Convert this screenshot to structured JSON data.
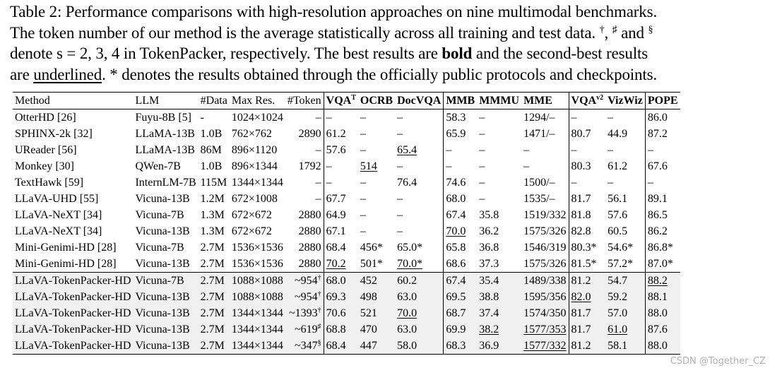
{
  "caption": {
    "line1": "Table 2: Performance comparisons with high-resolution approaches on nine multimodal benchmarks.",
    "line2a": "The token number of our method is the average statistically across all training and test data. ",
    "sym1": "†",
    "line2b": ", ",
    "sym2": "♯",
    "line2c": " and ",
    "sym3": "§",
    "line3": "denote s = 2, 3, 4 in TokenPacker, respectively. The best results are ",
    "bold_word": "bold",
    "line3b": " and the second-best results",
    "line4a": "are ",
    "underlined_word": "underlined",
    "line4b": ". * denotes the results obtained through the officially public protocols and checkpoints."
  },
  "table": {
    "headers": [
      {
        "label": "Method",
        "sup": ""
      },
      {
        "label": "LLM",
        "sup": ""
      },
      {
        "label": "#Data",
        "sup": ""
      },
      {
        "label": "Max Res.",
        "sup": ""
      },
      {
        "label": "#Token",
        "sup": ""
      },
      {
        "label": "VQA",
        "sup": "T"
      },
      {
        "label": "OCRB",
        "sup": ""
      },
      {
        "label": "DocVQA",
        "sup": ""
      },
      {
        "label": "MMB",
        "sup": ""
      },
      {
        "label": "MMMU",
        "sup": ""
      },
      {
        "label": "MME",
        "sup": ""
      },
      {
        "label": "VQA",
        "sup": "v2"
      },
      {
        "label": "VizWiz",
        "sup": ""
      },
      {
        "label": "POPE",
        "sup": ""
      }
    ],
    "rows": [
      {
        "ours": false,
        "cells": [
          {
            "v": "OtterHD [26]"
          },
          {
            "v": "Fuyu-8B [5]"
          },
          {
            "v": "-"
          },
          {
            "v": "1024×1024"
          },
          {
            "v": "–"
          },
          {
            "v": "–"
          },
          {
            "v": "–"
          },
          {
            "v": "–"
          },
          {
            "v": "58.3"
          },
          {
            "v": "–"
          },
          {
            "v": "1294/–"
          },
          {
            "v": "–"
          },
          {
            "v": "–"
          },
          {
            "v": "86.0"
          }
        ]
      },
      {
        "ours": false,
        "cells": [
          {
            "v": "SPHINX-2k [32]"
          },
          {
            "v": "LLaMA-13B"
          },
          {
            "v": "1.0B"
          },
          {
            "v": "762×762"
          },
          {
            "v": "2890"
          },
          {
            "v": "61.2"
          },
          {
            "v": "–"
          },
          {
            "v": "–"
          },
          {
            "v": "65.9"
          },
          {
            "v": "–"
          },
          {
            "v": "1471/–"
          },
          {
            "v": "80.7"
          },
          {
            "v": "44.9"
          },
          {
            "v": "87.2"
          }
        ]
      },
      {
        "ours": false,
        "cells": [
          {
            "v": "UReader [56]"
          },
          {
            "v": "LLaMA-13B"
          },
          {
            "v": "86M"
          },
          {
            "v": "896×1120"
          },
          {
            "v": "–"
          },
          {
            "v": "57.6"
          },
          {
            "v": "–"
          },
          {
            "v": "65.4",
            "u": true
          },
          {
            "v": "–"
          },
          {
            "v": "–"
          },
          {
            "v": "–"
          },
          {
            "v": "–"
          },
          {
            "v": "–"
          },
          {
            "v": "–"
          }
        ]
      },
      {
        "ours": false,
        "cells": [
          {
            "v": "Monkey [30]"
          },
          {
            "v": "QWen-7B"
          },
          {
            "v": "1.0B"
          },
          {
            "v": "896×1344"
          },
          {
            "v": "1792"
          },
          {
            "v": "–"
          },
          {
            "v": "514",
            "u": true
          },
          {
            "v": "–"
          },
          {
            "v": "–"
          },
          {
            "v": "–"
          },
          {
            "v": "–"
          },
          {
            "v": "80.3"
          },
          {
            "v": "61.2",
            "b": true
          },
          {
            "v": "67.6"
          }
        ]
      },
      {
        "ours": false,
        "cells": [
          {
            "v": "TextHawk [59]"
          },
          {
            "v": "InternLM-7B"
          },
          {
            "v": "115M"
          },
          {
            "v": "1344×1344"
          },
          {
            "v": "–"
          },
          {
            "v": "–"
          },
          {
            "v": "–"
          },
          {
            "v": "76.4",
            "b": true
          },
          {
            "v": "74.6",
            "b": true
          },
          {
            "v": "–"
          },
          {
            "v": "1500/–"
          },
          {
            "v": "–"
          },
          {
            "v": "–"
          },
          {
            "v": "–"
          }
        ]
      },
      {
        "ours": false,
        "cells": [
          {
            "v": "LLaVA-UHD [55]"
          },
          {
            "v": "Vicuna-13B"
          },
          {
            "v": "1.2M"
          },
          {
            "v": "672×1008"
          },
          {
            "v": "–"
          },
          {
            "v": "67.7"
          },
          {
            "v": "–"
          },
          {
            "v": "–"
          },
          {
            "v": "68.0"
          },
          {
            "v": "–"
          },
          {
            "v": "1535/–"
          },
          {
            "v": "81.7"
          },
          {
            "v": "56.1"
          },
          {
            "v": "89.1",
            "b": true
          }
        ]
      },
      {
        "ours": false,
        "cells": [
          {
            "v": "LLaVA-NeXT [34]"
          },
          {
            "v": "Vicuna-7B"
          },
          {
            "v": "1.3M"
          },
          {
            "v": "672×672"
          },
          {
            "v": "2880"
          },
          {
            "v": "64.9"
          },
          {
            "v": "–"
          },
          {
            "v": "–"
          },
          {
            "v": "67.4"
          },
          {
            "v": "35.8"
          },
          {
            "v": "1519/332"
          },
          {
            "v": "81.8"
          },
          {
            "v": "57.6"
          },
          {
            "v": "86.5"
          }
        ]
      },
      {
        "ours": false,
        "cells": [
          {
            "v": "LLaVA-NeXT [34]"
          },
          {
            "v": "Vicuna-13B"
          },
          {
            "v": "1.3M"
          },
          {
            "v": "672×672"
          },
          {
            "v": "2880"
          },
          {
            "v": "67.1"
          },
          {
            "v": "–"
          },
          {
            "v": "–"
          },
          {
            "v": "70.0",
            "u": true
          },
          {
            "v": "36.2"
          },
          {
            "v": "1575/326"
          },
          {
            "v": "82.8",
            "b": true
          },
          {
            "v": "60.5"
          },
          {
            "v": "86.2"
          }
        ]
      },
      {
        "ours": false,
        "cells": [
          {
            "v": "Mini-Genimi-HD [28]"
          },
          {
            "v": "Vicuna-7B"
          },
          {
            "v": "2.7M"
          },
          {
            "v": "1536×1536"
          },
          {
            "v": "2880"
          },
          {
            "v": "68.4"
          },
          {
            "v": "456*"
          },
          {
            "v": "65.0*"
          },
          {
            "v": "65.8"
          },
          {
            "v": "36.8"
          },
          {
            "v": "1546/319"
          },
          {
            "v": "80.3*"
          },
          {
            "v": "54.6*"
          },
          {
            "v": "86.8*"
          }
        ]
      },
      {
        "ours": false,
        "cells": [
          {
            "v": "Mini-Genimi-HD [28]"
          },
          {
            "v": "Vicuna-13B"
          },
          {
            "v": "2.7M"
          },
          {
            "v": "1536×1536"
          },
          {
            "v": "2880"
          },
          {
            "v": "70.2",
            "u": true
          },
          {
            "v": "501*"
          },
          {
            "v": "70.0*",
            "u": true
          },
          {
            "v": "68.6"
          },
          {
            "v": "37.3"
          },
          {
            "v": "1575/326"
          },
          {
            "v": "81.5*"
          },
          {
            "v": "57.2*"
          },
          {
            "v": "87.0*"
          }
        ]
      },
      {
        "ours": true,
        "cells": [
          {
            "v": "LLaVA-TokenPacker-HD"
          },
          {
            "v": "Vicuna-7B"
          },
          {
            "v": "2.7M"
          },
          {
            "v": "1088×1088"
          },
          {
            "v": "~954",
            "sup": "†"
          },
          {
            "v": "68.0"
          },
          {
            "v": "452"
          },
          {
            "v": "60.2"
          },
          {
            "v": "67.4"
          },
          {
            "v": "35.4"
          },
          {
            "v": "1489/338"
          },
          {
            "v": "81.2"
          },
          {
            "v": "54.7"
          },
          {
            "v": "88.2",
            "u": true
          }
        ]
      },
      {
        "ours": true,
        "cells": [
          {
            "v": "LLaVA-TokenPacker-HD"
          },
          {
            "v": "Vicuna-13B"
          },
          {
            "v": "2.7M"
          },
          {
            "v": "1088×1088"
          },
          {
            "v": "~954",
            "sup": "†"
          },
          {
            "v": "69.3"
          },
          {
            "v": "498"
          },
          {
            "v": "63.0"
          },
          {
            "v": "69.5"
          },
          {
            "v": "38.8",
            "b": true
          },
          {
            "v": "1595/356",
            "b": true
          },
          {
            "v": "82.0",
            "u": true
          },
          {
            "v": "59.2"
          },
          {
            "v": "88.1"
          }
        ]
      },
      {
        "ours": true,
        "cells": [
          {
            "v": "LLaVA-TokenPacker-HD"
          },
          {
            "v": "Vicuna-13B"
          },
          {
            "v": "2.7M"
          },
          {
            "v": "1344×1344"
          },
          {
            "v": "~1393",
            "sup": "†"
          },
          {
            "v": "70.6",
            "b": true
          },
          {
            "v": "521",
            "b": true
          },
          {
            "v": "70.0",
            "u": true
          },
          {
            "v": "68.7"
          },
          {
            "v": "37.4"
          },
          {
            "v": "1574/350"
          },
          {
            "v": "81.7"
          },
          {
            "v": "57.0"
          },
          {
            "v": "88.0"
          }
        ]
      },
      {
        "ours": true,
        "cells": [
          {
            "v": "LLaVA-TokenPacker-HD"
          },
          {
            "v": "Vicuna-13B"
          },
          {
            "v": "2.7M"
          },
          {
            "v": "1344×1344"
          },
          {
            "v": "~619",
            "sup": "♯"
          },
          {
            "v": "68.8"
          },
          {
            "v": "470"
          },
          {
            "v": "63.0"
          },
          {
            "v": "69.9"
          },
          {
            "v": "38.2",
            "u": true
          },
          {
            "v": "1577/353",
            "u": true
          },
          {
            "v": "81.7"
          },
          {
            "v": "61.0",
            "u": true
          },
          {
            "v": "87.6"
          }
        ]
      },
      {
        "ours": true,
        "cells": [
          {
            "v": "LLaVA-TokenPacker-HD"
          },
          {
            "v": "Vicuna-13B"
          },
          {
            "v": "2.7M"
          },
          {
            "v": "1344×1344"
          },
          {
            "v": "~347",
            "sup": "§"
          },
          {
            "v": "68.4"
          },
          {
            "v": "447"
          },
          {
            "v": "58.0"
          },
          {
            "v": "68.3"
          },
          {
            "v": "36.9"
          },
          {
            "v": "1577/332",
            "u": true
          },
          {
            "v": "81.2"
          },
          {
            "v": "58.1"
          },
          {
            "v": "88.0"
          }
        ]
      }
    ]
  },
  "watermark": "CSDN @Together_CZ"
}
